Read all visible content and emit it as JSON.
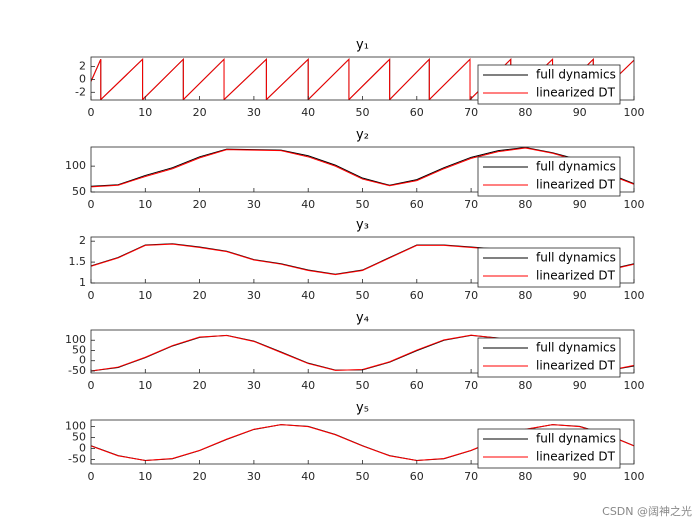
{
  "chart_data": [
    {
      "type": "line",
      "title": "y₁",
      "xlim": [
        0,
        100
      ],
      "xticks": [
        0,
        10,
        20,
        30,
        40,
        50,
        60,
        70,
        80,
        90,
        100
      ],
      "ylim": [
        -3.2,
        3.5
      ],
      "yticks": [
        -2,
        0,
        2
      ],
      "legend": "lower right",
      "x": [
        0,
        1.8,
        1.8,
        9.5,
        9.5,
        17,
        17,
        24.5,
        24.5,
        32.3,
        32.3,
        40,
        40,
        47.5,
        47.5,
        55,
        55,
        62.3,
        62.3,
        69.8,
        69.8,
        77.3,
        77.3,
        85,
        85,
        92.5,
        92.5,
        100
      ],
      "series": [
        {
          "name": "full dynamics",
          "color": "#000000",
          "values": [
            -0.3,
            3.14,
            -3.14,
            3.14,
            -3.14,
            3.14,
            -3.14,
            3.14,
            -3.14,
            3.14,
            -3.14,
            3.14,
            -3.14,
            3.14,
            -3.14,
            3.14,
            -3.14,
            3.14,
            -3.14,
            3.14,
            -3.14,
            3.14,
            -3.14,
            3.14,
            -3.14,
            3.14,
            -3.14,
            3.0
          ]
        },
        {
          "name": "linearized DT",
          "color": "#ff0000",
          "values": [
            -0.3,
            3.14,
            -3.14,
            3.14,
            -3.14,
            3.14,
            -3.14,
            3.14,
            -3.14,
            3.14,
            -3.14,
            3.14,
            -3.14,
            3.14,
            -3.14,
            3.14,
            -3.14,
            3.14,
            -3.14,
            3.14,
            -3.14,
            3.14,
            -3.14,
            3.14,
            -3.14,
            3.14,
            -3.14,
            3.0
          ]
        }
      ]
    },
    {
      "type": "line",
      "title": "y₂",
      "xlim": [
        0,
        100
      ],
      "xticks": [
        0,
        10,
        20,
        30,
        40,
        50,
        60,
        70,
        80,
        90,
        100
      ],
      "ylim": [
        50,
        137
      ],
      "yticks": [
        50,
        100
      ],
      "legend": "lower right",
      "x": [
        0,
        5,
        10,
        15,
        20,
        25,
        30,
        35,
        40,
        45,
        50,
        55,
        60,
        65,
        70,
        75,
        80,
        85,
        90,
        95,
        100
      ],
      "series": [
        {
          "name": "full dynamics",
          "color": "#000000",
          "values": [
            61,
            64,
            82,
            97,
            118,
            133,
            132,
            131,
            120,
            102,
            77,
            63,
            74,
            97,
            117,
            130,
            136,
            126,
            112,
            87,
            66
          ]
        },
        {
          "name": "linearized DT",
          "color": "#ff0000",
          "values": [
            60,
            63,
            80,
            95,
            116,
            132,
            131,
            130,
            118,
            100,
            75,
            62,
            72,
            95,
            115,
            128,
            135,
            125,
            110,
            85,
            65
          ]
        }
      ]
    },
    {
      "type": "line",
      "title": "y₃",
      "xlim": [
        0,
        100
      ],
      "xticks": [
        0,
        10,
        20,
        30,
        40,
        50,
        60,
        70,
        80,
        90,
        100
      ],
      "ylim": [
        1,
        2.1
      ],
      "yticks": [
        1,
        1.5,
        2
      ],
      "legend": "lower right",
      "x": [
        0,
        5,
        10,
        15,
        20,
        25,
        30,
        35,
        40,
        45,
        50,
        55,
        60,
        65,
        70,
        75,
        80,
        85,
        90,
        95,
        100
      ],
      "series": [
        {
          "name": "full dynamics",
          "color": "#000000",
          "values": [
            1.41,
            1.61,
            1.91,
            1.94,
            1.86,
            1.76,
            1.56,
            1.46,
            1.31,
            1.21,
            1.31,
            1.61,
            1.91,
            1.91,
            1.86,
            1.81,
            1.71,
            1.56,
            1.41,
            1.31,
            1.46
          ]
        },
        {
          "name": "linearized DT",
          "color": "#ff0000",
          "values": [
            1.4,
            1.6,
            1.9,
            1.93,
            1.85,
            1.75,
            1.55,
            1.45,
            1.3,
            1.2,
            1.3,
            1.6,
            1.9,
            1.9,
            1.85,
            1.8,
            1.7,
            1.55,
            1.4,
            1.3,
            1.45
          ]
        }
      ]
    },
    {
      "type": "line",
      "title": "y₄",
      "xlim": [
        0,
        100
      ],
      "xticks": [
        0,
        10,
        20,
        30,
        40,
        50,
        60,
        70,
        80,
        90,
        100
      ],
      "ylim": [
        -60,
        150
      ],
      "yticks": [
        -50,
        0,
        50,
        100
      ],
      "legend": "lower right",
      "x": [
        0,
        5,
        10,
        15,
        20,
        25,
        30,
        35,
        40,
        45,
        50,
        55,
        60,
        65,
        70,
        75,
        80,
        85,
        90,
        95,
        100
      ],
      "series": [
        {
          "name": "full dynamics",
          "color": "#000000",
          "values": [
            -50,
            -33,
            15,
            72,
            114,
            124,
            96,
            43,
            -12,
            -46,
            -45,
            -7,
            49,
            100,
            124,
            111,
            66,
            9,
            -35,
            -49,
            -26
          ]
        },
        {
          "name": "linearized DT",
          "color": "#ff0000",
          "values": [
            -50,
            -31,
            17,
            74,
            116,
            123,
            94,
            40,
            -14,
            -47,
            -43,
            -5,
            52,
            102,
            125,
            110,
            63,
            6,
            -38,
            -49,
            -23
          ]
        }
      ]
    },
    {
      "type": "line",
      "title": "y₅",
      "xlim": [
        0,
        100
      ],
      "xticks": [
        0,
        10,
        20,
        30,
        40,
        50,
        60,
        70,
        80,
        90,
        100
      ],
      "ylim": [
        -70,
        130
      ],
      "yticks": [
        -50,
        0,
        50,
        100
      ],
      "legend": "lower right",
      "x": [
        0,
        5,
        10,
        15,
        20,
        25,
        30,
        35,
        40,
        45,
        50,
        55,
        60,
        65,
        70,
        75,
        80,
        85,
        90,
        95,
        100
      ],
      "series": [
        {
          "name": "full dynamics",
          "color": "#000000",
          "values": [
            13,
            -32,
            -54,
            -46,
            -9,
            42,
            87,
            109,
            101,
            64,
            13,
            -32,
            -54,
            -46,
            -9,
            42,
            87,
            109,
            101,
            64,
            13
          ]
        },
        {
          "name": "linearized DT",
          "color": "#ff0000",
          "values": [
            12,
            -33,
            -54,
            -45,
            -8,
            43,
            88,
            109,
            100,
            63,
            12,
            -33,
            -54,
            -45,
            -8,
            43,
            88,
            109,
            100,
            63,
            12
          ]
        }
      ]
    }
  ],
  "watermark": "CSDN @阔神之光"
}
